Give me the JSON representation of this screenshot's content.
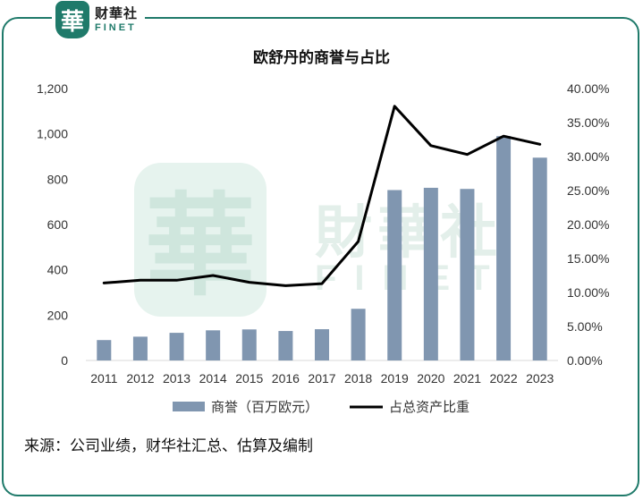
{
  "header": {
    "logo_glyph": "華",
    "logo_cn": "财華社",
    "logo_en": "FINET"
  },
  "watermark": {
    "glyph": "華",
    "cn": "財華社",
    "en": "FINET"
  },
  "source_text": "来源：公司业绩，财华社汇总、估算及编制",
  "colors": {
    "bar": "#8096b0",
    "line": "#000000",
    "frame": "#1f7a6a",
    "watermark": "#d4ebe3"
  },
  "chart_data": {
    "type": "bar",
    "title": "欧舒丹的商誉与占比",
    "categories": [
      "2011",
      "2012",
      "2013",
      "2014",
      "2015",
      "2016",
      "2017",
      "2018",
      "2019",
      "2020",
      "2021",
      "2022",
      "2023"
    ],
    "series": [
      {
        "name": "商誉（百万欧元）",
        "type": "bar",
        "axis": "left",
        "values": [
          90,
          105,
          122,
          133,
          137,
          130,
          138,
          228,
          752,
          762,
          757,
          990,
          895
        ]
      },
      {
        "name": "占总资产比重",
        "type": "line",
        "axis": "right",
        "values": [
          11.4,
          11.8,
          11.8,
          12.5,
          11.5,
          11.0,
          11.3,
          17.5,
          37.4,
          31.6,
          30.3,
          33.0,
          31.8
        ]
      }
    ],
    "y_left": {
      "min": 0,
      "max": 1200,
      "ticks": [
        "0",
        "200",
        "400",
        "600",
        "800",
        "1,000",
        "1,200"
      ]
    },
    "y_right": {
      "min": 0,
      "max": 40,
      "ticks": [
        "0.00%",
        "5.00%",
        "10.00%",
        "15.00%",
        "20.00%",
        "25.00%",
        "30.00%",
        "35.00%",
        "40.00%"
      ]
    },
    "grid": false,
    "legend": "bottom"
  }
}
